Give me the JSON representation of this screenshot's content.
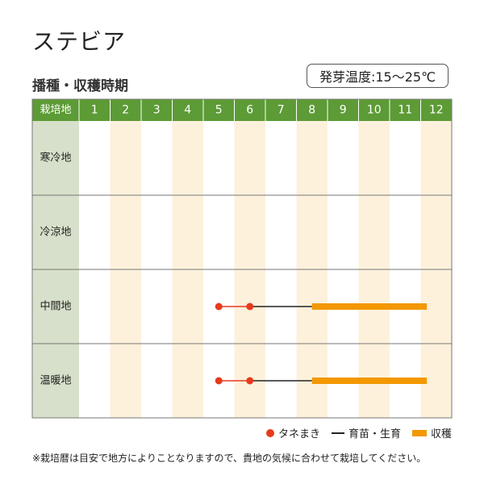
{
  "title": "ステビア",
  "subtitle": "播種・収穫時期",
  "germination_badge": "発芽温度:15〜25℃",
  "footnote": "※栽培暦は目安で地方によりことなりますので、貴地の気候に合わせて栽培してください。",
  "colors": {
    "header_bg": "#5c9b35",
    "label_col_bg": "#d7e0ca",
    "stripe_bg": "#fdf1dc",
    "sowing": "#e83a1c",
    "growing": "#222222",
    "harvest": "#f39800"
  },
  "legend": {
    "sowing": "タネまき",
    "growing": "育苗・生育",
    "harvest": "収穫"
  },
  "chart_data": {
    "type": "table",
    "corner_label": "栽培地",
    "months": [
      "1",
      "2",
      "3",
      "4",
      "5",
      "6",
      "7",
      "8",
      "9",
      "10",
      "11",
      "12"
    ],
    "regions": [
      {
        "name": "寒冷地",
        "sowing": [],
        "growing": [],
        "harvest": []
      },
      {
        "name": "冷涼地",
        "sowing": [],
        "growing": [],
        "harvest": []
      },
      {
        "name": "中間地",
        "sowing": [
          5,
          6
        ],
        "growing": [
          6,
          8
        ],
        "harvest": [
          8,
          11.7
        ]
      },
      {
        "name": "温暖地",
        "sowing": [
          5,
          6
        ],
        "growing": [
          6,
          8
        ],
        "harvest": [
          8,
          11.7
        ]
      }
    ]
  }
}
